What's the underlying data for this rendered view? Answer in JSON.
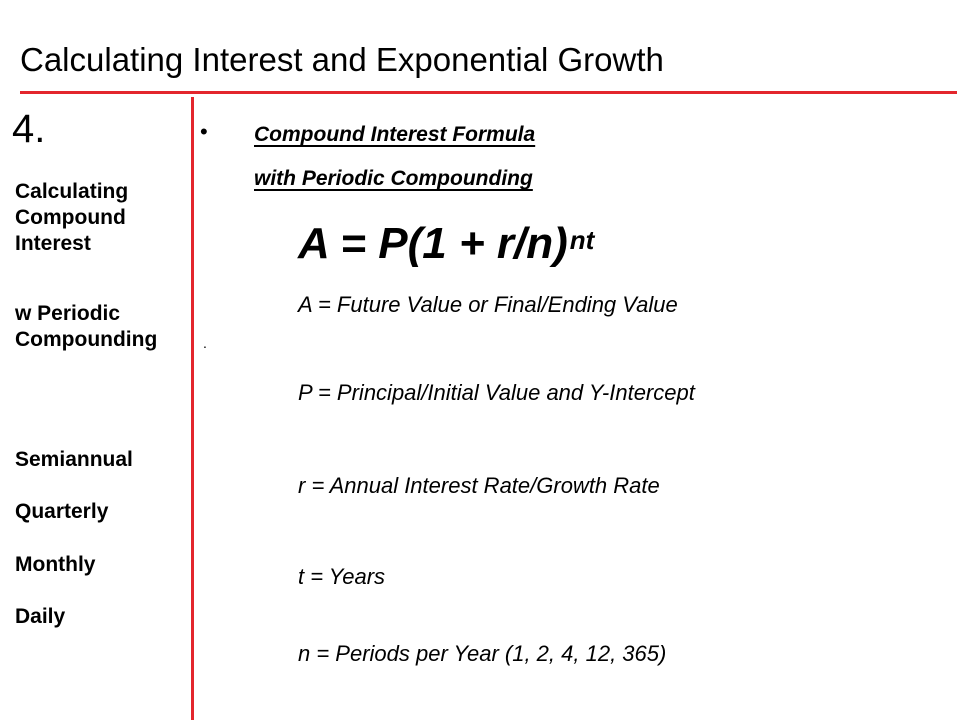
{
  "title": "Calculating Interest and Exponential Growth",
  "colors": {
    "accent_rule": "#e3262d",
    "text": "#000000",
    "background": "#ffffff"
  },
  "left": {
    "number": "4.",
    "heading_1": "Calculating\nCompound\nInterest",
    "heading_2": "w Periodic\nCompounding",
    "frequencies": [
      "Semiannual",
      "Quarterly",
      "Monthly",
      "Daily"
    ]
  },
  "right": {
    "bullet": "•",
    "subheading_line_1": "Compound Interest Formula",
    "subheading_line_2": "with Periodic Compounding",
    "formula_base": "A = P(1 + r/n)",
    "formula_exponent": "nt",
    "definitions": [
      "A = Future Value or Final/Ending Value",
      "P = Principal/Initial Value and Y-Intercept",
      "r = Annual Interest Rate/Growth Rate",
      "t = Years",
      "n = Periods per Year (1, 2, 4, 12, 365)"
    ],
    "stray_mark": "."
  }
}
